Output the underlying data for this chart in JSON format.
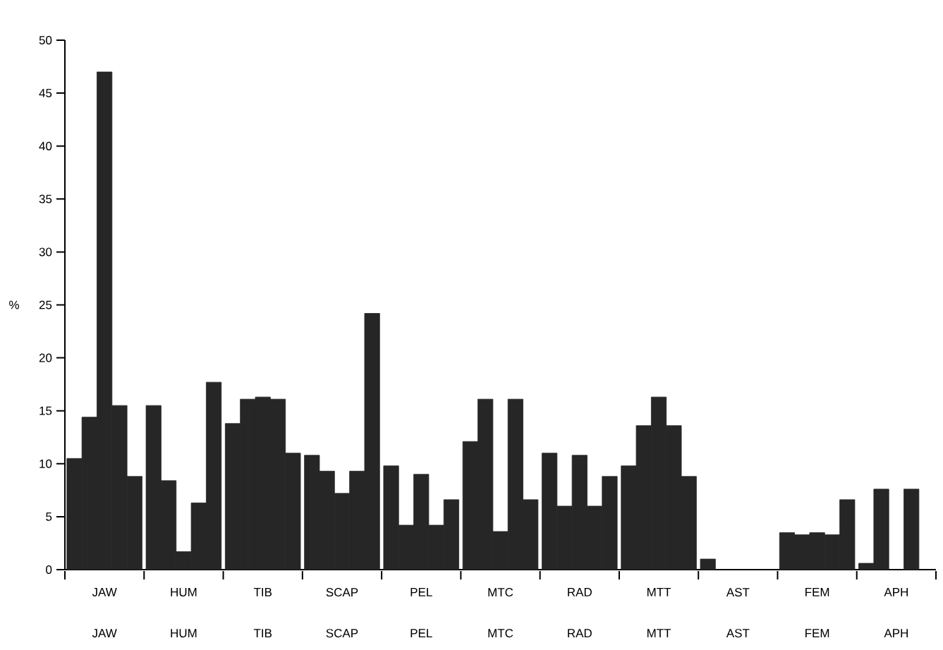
{
  "chart_data": {
    "type": "bar",
    "ylabel": "%",
    "categories": [
      "JAW",
      "HUM",
      "TIB",
      "SCAP",
      "PEL",
      "MTC",
      "RAD",
      "MTT",
      "AST",
      "FEM",
      "APH"
    ],
    "series": [
      {
        "color": "#262626",
        "values": [
          10.5,
          15.5,
          13.8,
          10.8,
          9.8,
          12.1,
          11.0,
          9.8,
          1.0,
          3.5,
          0.6
        ]
      },
      {
        "color": "#262626",
        "values": [
          14.4,
          8.4,
          16.1,
          9.3,
          4.2,
          16.1,
          6.0,
          13.6,
          0,
          3.3,
          7.6
        ]
      },
      {
        "color": "#262626",
        "values": [
          47,
          1.7,
          16.3,
          7.2,
          9.0,
          3.6,
          10.8,
          16.3,
          0,
          3.5,
          0
        ]
      },
      {
        "color": "#262626",
        "values": [
          15.5,
          6.3,
          16.1,
          9.3,
          4.2,
          16.1,
          6.0,
          13.6,
          0,
          3.3,
          7.6
        ]
      },
      {
        "color": "#262626",
        "values": [
          8.8,
          17.7,
          11.0,
          24.2,
          6.6,
          6.6,
          8.8,
          8.8,
          0,
          6.6,
          0
        ]
      }
    ],
    "ylim": [
      0,
      50
    ],
    "yticks": [
      0,
      5,
      10,
      15,
      20,
      25,
      30,
      35,
      40,
      45,
      50
    ],
    "grid": false,
    "annotations": [
      "JAW",
      "HUM",
      "TIB",
      "SCAP",
      "PEL",
      "MTC",
      "RAD",
      "MTT",
      "AST",
      "FEM",
      "APH"
    ]
  }
}
